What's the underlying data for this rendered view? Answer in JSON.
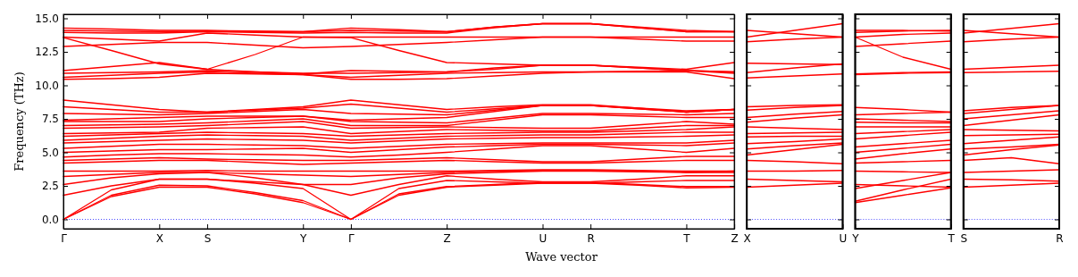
{
  "chart_data": [
    {
      "type": "line",
      "xlabel": "Wave vector",
      "ylabel": "Frequency (THz)",
      "categories": [
        "Γ",
        null,
        "X",
        "S",
        null,
        "Y",
        "Γ",
        null,
        "Z",
        null,
        "U",
        "R",
        null,
        "T",
        "Z"
      ],
      "ylim": [
        -0.7,
        15.3
      ],
      "yticks": [
        {
          "value": 0,
          "label": "0.0"
        },
        {
          "value": 2.5,
          "label": "2.5"
        },
        {
          "value": 5,
          "label": "5.0"
        },
        {
          "value": 7.5,
          "label": "7.5"
        },
        {
          "value": 10,
          "label": "10.0"
        },
        {
          "value": 12.5,
          "label": "12.5"
        },
        {
          "value": 15,
          "label": "15.0"
        }
      ],
      "ref_lines": [
        {
          "axis": "y",
          "value": 0,
          "color": "#0000ff",
          "line_style": "dotted"
        }
      ],
      "series": [
        {
          "color": "#ff0000",
          "values": [
            0,
            1.7,
            2.4,
            2.4,
            1.9,
            1.25,
            0,
            1.8,
            2.4,
            2.55,
            2.7,
            2.7,
            2.55,
            2.35,
            2.4
          ]
        },
        {
          "color": "#ff0000",
          "values": [
            0,
            1.8,
            2.55,
            2.5,
            2.0,
            1.4,
            0,
            1.9,
            2.45,
            2.6,
            2.75,
            2.75,
            2.6,
            2.45,
            2.45
          ]
        },
        {
          "color": "#ff0000",
          "values": [
            0,
            2.2,
            3.0,
            3.0,
            2.7,
            2.3,
            0,
            2.3,
            2.9,
            2.8,
            2.7,
            2.7,
            2.8,
            2.9,
            2.9
          ]
        },
        {
          "color": "#ff0000",
          "values": [
            1.8,
            2.5,
            3.0,
            3.0,
            2.8,
            2.6,
            1.8,
            2.6,
            3.25,
            3.0,
            2.8,
            2.8,
            3.0,
            3.25,
            3.25
          ]
        },
        {
          "color": "#ff0000",
          "values": [
            2.6,
            3.1,
            3.4,
            3.5,
            3.1,
            2.6,
            2.6,
            3.1,
            3.4,
            3.5,
            3.6,
            3.6,
            3.55,
            3.5,
            3.5
          ]
        },
        {
          "color": "#ff0000",
          "values": [
            3.2,
            3.35,
            3.5,
            3.5,
            3.4,
            3.3,
            3.2,
            3.35,
            3.5,
            3.6,
            3.65,
            3.65,
            3.6,
            3.5,
            3.6
          ]
        },
        {
          "color": "#ff0000",
          "values": [
            3.6,
            3.6,
            3.6,
            3.65,
            3.6,
            3.6,
            3.6,
            3.6,
            3.6,
            3.65,
            3.7,
            3.7,
            3.65,
            3.6,
            3.6
          ]
        },
        {
          "color": "#ff0000",
          "values": [
            4.2,
            4.3,
            4.4,
            4.4,
            4.25,
            4.1,
            4.2,
            4.3,
            4.4,
            4.3,
            4.2,
            4.2,
            4.3,
            4.4,
            4.4
          ]
        },
        {
          "color": "#ff0000",
          "values": [
            4.4,
            4.5,
            4.6,
            4.5,
            4.45,
            4.4,
            4.4,
            4.5,
            4.6,
            4.45,
            4.3,
            4.3,
            4.5,
            4.7,
            4.7
          ]
        },
        {
          "color": "#ff0000",
          "values": [
            4.65,
            4.8,
            4.9,
            4.9,
            4.85,
            4.8,
            4.65,
            4.8,
            5.0,
            5.25,
            5.5,
            5.5,
            5.25,
            5.0,
            5.3
          ]
        },
        {
          "color": "#ff0000",
          "values": [
            5.0,
            5.1,
            5.2,
            5.2,
            5.25,
            5.3,
            5.0,
            5.2,
            5.4,
            5.5,
            5.6,
            5.6,
            5.55,
            5.5,
            5.7
          ]
        },
        {
          "color": "#ff0000",
          "values": [
            5.3,
            5.45,
            5.6,
            5.6,
            5.55,
            5.5,
            5.3,
            5.45,
            5.6,
            5.65,
            5.7,
            5.7,
            5.7,
            5.7,
            5.9
          ]
        },
        {
          "color": "#ff0000",
          "values": [
            5.7,
            5.8,
            5.9,
            6.0,
            5.95,
            5.9,
            5.7,
            5.85,
            6.0,
            6.05,
            6.1,
            6.1,
            6.15,
            6.2,
            6.3
          ]
        },
        {
          "color": "#ff0000",
          "values": [
            5.9,
            6.05,
            6.2,
            6.3,
            6.25,
            6.2,
            5.9,
            6.05,
            6.2,
            6.25,
            6.3,
            6.3,
            6.4,
            6.5,
            6.5
          ]
        },
        {
          "color": "#ff0000",
          "values": [
            6.2,
            6.3,
            6.4,
            6.5,
            6.45,
            6.4,
            6.2,
            6.3,
            6.4,
            6.45,
            6.5,
            6.5,
            6.6,
            6.7,
            6.9
          ]
        },
        {
          "color": "#ff0000",
          "values": [
            6.4,
            6.45,
            6.5,
            6.8,
            6.85,
            6.9,
            6.4,
            6.55,
            6.7,
            6.65,
            6.6,
            6.6,
            6.8,
            7.0,
            7.0
          ]
        },
        {
          "color": "#ff0000",
          "values": [
            6.8,
            6.85,
            6.9,
            7.0,
            7.15,
            7.3,
            6.8,
            6.85,
            6.9,
            6.85,
            6.8,
            6.8,
            7.05,
            7.3,
            7.1
          ]
        },
        {
          "color": "#ff0000",
          "values": [
            7.0,
            7.05,
            7.1,
            7.2,
            7.35,
            7.5,
            7.0,
            7.0,
            7.0,
            7.4,
            7.8,
            7.8,
            7.7,
            7.6,
            7.6
          ]
        },
        {
          "color": "#ff0000",
          "values": [
            7.3,
            7.3,
            7.3,
            7.5,
            7.6,
            7.7,
            7.3,
            7.25,
            7.2,
            7.55,
            7.9,
            7.9,
            7.85,
            7.8,
            7.9
          ]
        },
        {
          "color": "#ff0000",
          "values": [
            7.4,
            7.5,
            7.6,
            7.7,
            7.7,
            7.7,
            7.4,
            7.5,
            7.6,
            8.05,
            8.5,
            8.5,
            8.25,
            8.0,
            8.2
          ]
        },
        {
          "color": "#ff0000",
          "values": [
            7.9,
            7.85,
            7.8,
            7.9,
            8.05,
            8.2,
            7.9,
            7.85,
            7.8,
            8.15,
            8.5,
            8.5,
            8.3,
            8.1,
            8.2
          ]
        },
        {
          "color": "#ff0000",
          "values": [
            8.4,
            8.2,
            8.0,
            8.0,
            8.15,
            8.3,
            8.6,
            8.3,
            8.0,
            8.25,
            8.5,
            8.5,
            8.25,
            8.0,
            8.2
          ]
        },
        {
          "color": "#ff0000",
          "values": [
            8.9,
            8.55,
            8.2,
            8.0,
            8.2,
            8.4,
            8.9,
            8.55,
            8.2,
            8.4,
            8.55,
            8.55,
            8.3,
            8.0,
            8.2
          ]
        },
        {
          "color": "#ff0000",
          "values": [
            10.45,
            10.5,
            10.6,
            10.9,
            10.85,
            10.8,
            10.45,
            10.45,
            10.5,
            10.7,
            10.9,
            11.0,
            11.0,
            11.0,
            10.5
          ]
        },
        {
          "color": "#ff0000",
          "values": [
            10.6,
            10.75,
            10.9,
            11.0,
            10.9,
            10.8,
            10.6,
            10.75,
            10.9,
            10.95,
            11.0,
            11.0,
            11.05,
            11.1,
            10.9
          ]
        },
        {
          "color": "#ff0000",
          "values": [
            10.9,
            10.95,
            11.0,
            11.1,
            11.0,
            10.9,
            10.9,
            10.95,
            11.0,
            11.3,
            11.5,
            11.5,
            11.3,
            11.1,
            11.0
          ]
        },
        {
          "color": "#ff0000",
          "values": [
            11.1,
            11.4,
            11.7,
            11.2,
            12.3,
            13.6,
            13.56,
            12.6,
            11.7,
            11.6,
            11.5,
            11.5,
            11.35,
            11.2,
            11.7
          ]
        },
        {
          "color": "#ff0000",
          "values": [
            13.56,
            12.6,
            11.6,
            11.2,
            11.0,
            10.85,
            11.1,
            11.05,
            11.0,
            11.2,
            11.5,
            11.5,
            11.3,
            11.1,
            11.0
          ]
        },
        {
          "color": "#ff0000",
          "values": [
            12.9,
            13.05,
            13.2,
            13.2,
            13.0,
            12.8,
            12.9,
            13.05,
            13.2,
            13.4,
            13.6,
            13.6,
            13.45,
            13.3,
            13.3
          ]
        },
        {
          "color": "#ff0000",
          "values": [
            13.6,
            13.45,
            13.3,
            13.9,
            13.75,
            13.6,
            13.6,
            13.6,
            13.6,
            13.6,
            13.6,
            13.6,
            13.6,
            13.6,
            13.6
          ]
        },
        {
          "color": "#ff0000",
          "values": [
            13.95,
            13.9,
            13.9,
            14.0,
            13.95,
            13.9,
            13.95,
            13.9,
            13.9,
            14.3,
            14.6,
            14.6,
            14.3,
            14.0,
            14.0
          ]
        },
        {
          "color": "#ff0000",
          "values": [
            14.1,
            14.05,
            14.0,
            14.05,
            14.0,
            14.0,
            14.1,
            14.05,
            14.0,
            14.35,
            14.6,
            14.6,
            14.35,
            14.1,
            14.0
          ]
        },
        {
          "color": "#ff0000",
          "values": [
            14.28,
            14.2,
            14.1,
            14.1,
            14.05,
            14.0,
            14.28,
            14.15,
            14.0,
            14.35,
            14.6,
            14.6,
            14.3,
            14.0,
            14.0
          ]
        }
      ]
    },
    {
      "type": "line",
      "tick_labels": "x",
      "categories": [
        "X",
        null,
        "U"
      ],
      "ylim": [
        -0.7,
        15.3
      ],
      "yticks": [
        {
          "value": 0,
          "label": null
        },
        {
          "value": 2.5,
          "label": null
        },
        {
          "value": 5,
          "label": null
        },
        {
          "value": 7.5,
          "label": null
        },
        {
          "value": 10,
          "label": null
        },
        {
          "value": 12.5,
          "label": null
        },
        {
          "value": 15,
          "label": null
        }
      ],
      "ref_lines": [
        {
          "axis": "y",
          "value": 0,
          "color": "#0000ff",
          "line_style": "dotted"
        }
      ],
      "series": [
        {
          "color": "#ff0000",
          "values": [
            2.4,
            2.55,
            2.7
          ]
        },
        {
          "color": "#ff0000",
          "values": [
            3.0,
            2.9,
            2.8
          ]
        },
        {
          "color": "#ff0000",
          "values": [
            3.6,
            3.6,
            3.65
          ]
        },
        {
          "color": "#ff0000",
          "values": [
            4.4,
            4.3,
            4.15
          ]
        },
        {
          "color": "#ff0000",
          "values": [
            4.8,
            5.2,
            5.6
          ]
        },
        {
          "color": "#ff0000",
          "values": [
            5.25,
            5.5,
            5.7
          ]
        },
        {
          "color": "#ff0000",
          "values": [
            5.65,
            5.8,
            6.0
          ]
        },
        {
          "color": "#ff0000",
          "values": [
            6.15,
            6.2,
            6.2
          ]
        },
        {
          "color": "#ff0000",
          "values": [
            6.4,
            6.45,
            6.5
          ]
        },
        {
          "color": "#ff0000",
          "values": [
            6.9,
            6.8,
            6.7
          ]
        },
        {
          "color": "#ff0000",
          "values": [
            7.25,
            7.55,
            7.8
          ]
        },
        {
          "color": "#ff0000",
          "values": [
            7.6,
            7.85,
            8.05
          ]
        },
        {
          "color": "#ff0000",
          "values": [
            8.15,
            8.35,
            8.5
          ]
        },
        {
          "color": "#ff0000",
          "values": [
            8.4,
            8.5,
            8.55
          ]
        },
        {
          "color": "#ff0000",
          "values": [
            10.55,
            10.7,
            10.85
          ]
        },
        {
          "color": "#ff0000",
          "values": [
            10.95,
            11.3,
            11.6
          ]
        },
        {
          "color": "#ff0000",
          "values": [
            11.65,
            11.6,
            11.55
          ]
        },
        {
          "color": "#ff0000",
          "values": [
            13.25,
            13.45,
            13.6
          ]
        },
        {
          "color": "#ff0000",
          "values": [
            13.6,
            14.1,
            14.6
          ]
        },
        {
          "color": "#ff0000",
          "values": [
            14.1,
            13.85,
            13.6
          ]
        }
      ]
    },
    {
      "type": "line",
      "tick_labels": "x",
      "categories": [
        "Y",
        null,
        "T"
      ],
      "ylim": [
        -0.7,
        15.3
      ],
      "yticks": [
        {
          "value": 0,
          "label": null
        },
        {
          "value": 2.5,
          "label": null
        },
        {
          "value": 5,
          "label": null
        },
        {
          "value": 7.5,
          "label": null
        },
        {
          "value": 10,
          "label": null
        },
        {
          "value": 12.5,
          "label": null
        },
        {
          "value": 15,
          "label": null
        }
      ],
      "ref_lines": [
        {
          "axis": "y",
          "value": 0,
          "color": "#0000ff",
          "line_style": "dotted"
        }
      ],
      "series": [
        {
          "color": "#ff0000",
          "values": [
            1.25,
            1.8,
            2.35
          ]
        },
        {
          "color": "#ff0000",
          "values": [
            1.35,
            2.2,
            3.0
          ]
        },
        {
          "color": "#ff0000",
          "values": [
            2.3,
            2.9,
            3.5
          ]
        },
        {
          "color": "#ff0000",
          "values": [
            2.6,
            2.5,
            2.4
          ]
        },
        {
          "color": "#ff0000",
          "values": [
            3.6,
            3.55,
            3.5
          ]
        },
        {
          "color": "#ff0000",
          "values": [
            4.2,
            4.3,
            4.4
          ]
        },
        {
          "color": "#ff0000",
          "values": [
            4.5,
            4.9,
            5.25
          ]
        },
        {
          "color": "#ff0000",
          "values": [
            5.0,
            5.3,
            5.6
          ]
        },
        {
          "color": "#ff0000",
          "values": [
            5.4,
            5.65,
            5.9
          ]
        },
        {
          "color": "#ff0000",
          "values": [
            6.0,
            6.25,
            6.5
          ]
        },
        {
          "color": "#ff0000",
          "values": [
            6.4,
            6.55,
            6.7
          ]
        },
        {
          "color": "#ff0000",
          "values": [
            6.9,
            6.9,
            6.9
          ]
        },
        {
          "color": "#ff0000",
          "values": [
            7.25,
            7.2,
            7.2
          ]
        },
        {
          "color": "#ff0000",
          "values": [
            7.5,
            7.4,
            7.3
          ]
        },
        {
          "color": "#ff0000",
          "values": [
            7.8,
            7.9,
            8.0
          ]
        },
        {
          "color": "#ff0000",
          "values": [
            8.35,
            8.2,
            8.0
          ]
        },
        {
          "color": "#ff0000",
          "values": [
            10.8,
            10.9,
            10.95
          ]
        },
        {
          "color": "#ff0000",
          "values": [
            10.85,
            10.95,
            11.0
          ]
        },
        {
          "color": "#ff0000",
          "values": [
            13.6,
            12.1,
            11.2
          ]
        },
        {
          "color": "#ff0000",
          "values": [
            12.9,
            13.1,
            13.3
          ]
        },
        {
          "color": "#ff0000",
          "values": [
            13.6,
            13.8,
            13.9
          ]
        },
        {
          "color": "#ff0000",
          "values": [
            13.95,
            14.05,
            14.1
          ]
        },
        {
          "color": "#ff0000",
          "values": [
            14.1,
            14.1,
            14.05
          ]
        }
      ]
    },
    {
      "type": "line",
      "tick_labels": "x",
      "categories": [
        "S",
        null,
        "R"
      ],
      "ylim": [
        -0.7,
        15.3
      ],
      "yticks": [
        {
          "value": 0,
          "label": null
        },
        {
          "value": 2.5,
          "label": null
        },
        {
          "value": 5,
          "label": null
        },
        {
          "value": 7.5,
          "label": null
        },
        {
          "value": 10,
          "label": null
        },
        {
          "value": 12.5,
          "label": null
        },
        {
          "value": 15,
          "label": null
        }
      ],
      "ref_lines": [
        {
          "axis": "y",
          "value": 0,
          "color": "#0000ff",
          "line_style": "dotted"
        }
      ],
      "series": [
        {
          "color": "#ff0000",
          "values": [
            2.4,
            2.55,
            2.7
          ]
        },
        {
          "color": "#ff0000",
          "values": [
            3.0,
            2.95,
            2.85
          ]
        },
        {
          "color": "#ff0000",
          "values": [
            3.5,
            3.6,
            3.7
          ]
        },
        {
          "color": "#ff0000",
          "values": [
            4.4,
            4.6,
            4.15
          ]
        },
        {
          "color": "#ff0000",
          "values": [
            4.8,
            5.2,
            5.55
          ]
        },
        {
          "color": "#ff0000",
          "values": [
            5.25,
            5.4,
            5.6
          ]
        },
        {
          "color": "#ff0000",
          "values": [
            5.65,
            5.9,
            6.15
          ]
        },
        {
          "color": "#ff0000",
          "values": [
            6.25,
            6.3,
            6.35
          ]
        },
        {
          "color": "#ff0000",
          "values": [
            6.7,
            6.65,
            6.6
          ]
        },
        {
          "color": "#ff0000",
          "values": [
            7.0,
            7.4,
            7.8
          ]
        },
        {
          "color": "#ff0000",
          "values": [
            7.5,
            7.8,
            8.1
          ]
        },
        {
          "color": "#ff0000",
          "values": [
            7.9,
            8.2,
            8.5
          ]
        },
        {
          "color": "#ff0000",
          "values": [
            8.1,
            8.35,
            8.5
          ]
        },
        {
          "color": "#ff0000",
          "values": [
            10.95,
            11.0,
            11.05
          ]
        },
        {
          "color": "#ff0000",
          "values": [
            11.2,
            11.35,
            11.5
          ]
        },
        {
          "color": "#ff0000",
          "values": [
            13.25,
            13.45,
            13.6
          ]
        },
        {
          "color": "#ff0000",
          "values": [
            13.9,
            14.25,
            14.6
          ]
        },
        {
          "color": "#ff0000",
          "values": [
            14.1,
            13.85,
            13.6
          ]
        }
      ]
    }
  ]
}
